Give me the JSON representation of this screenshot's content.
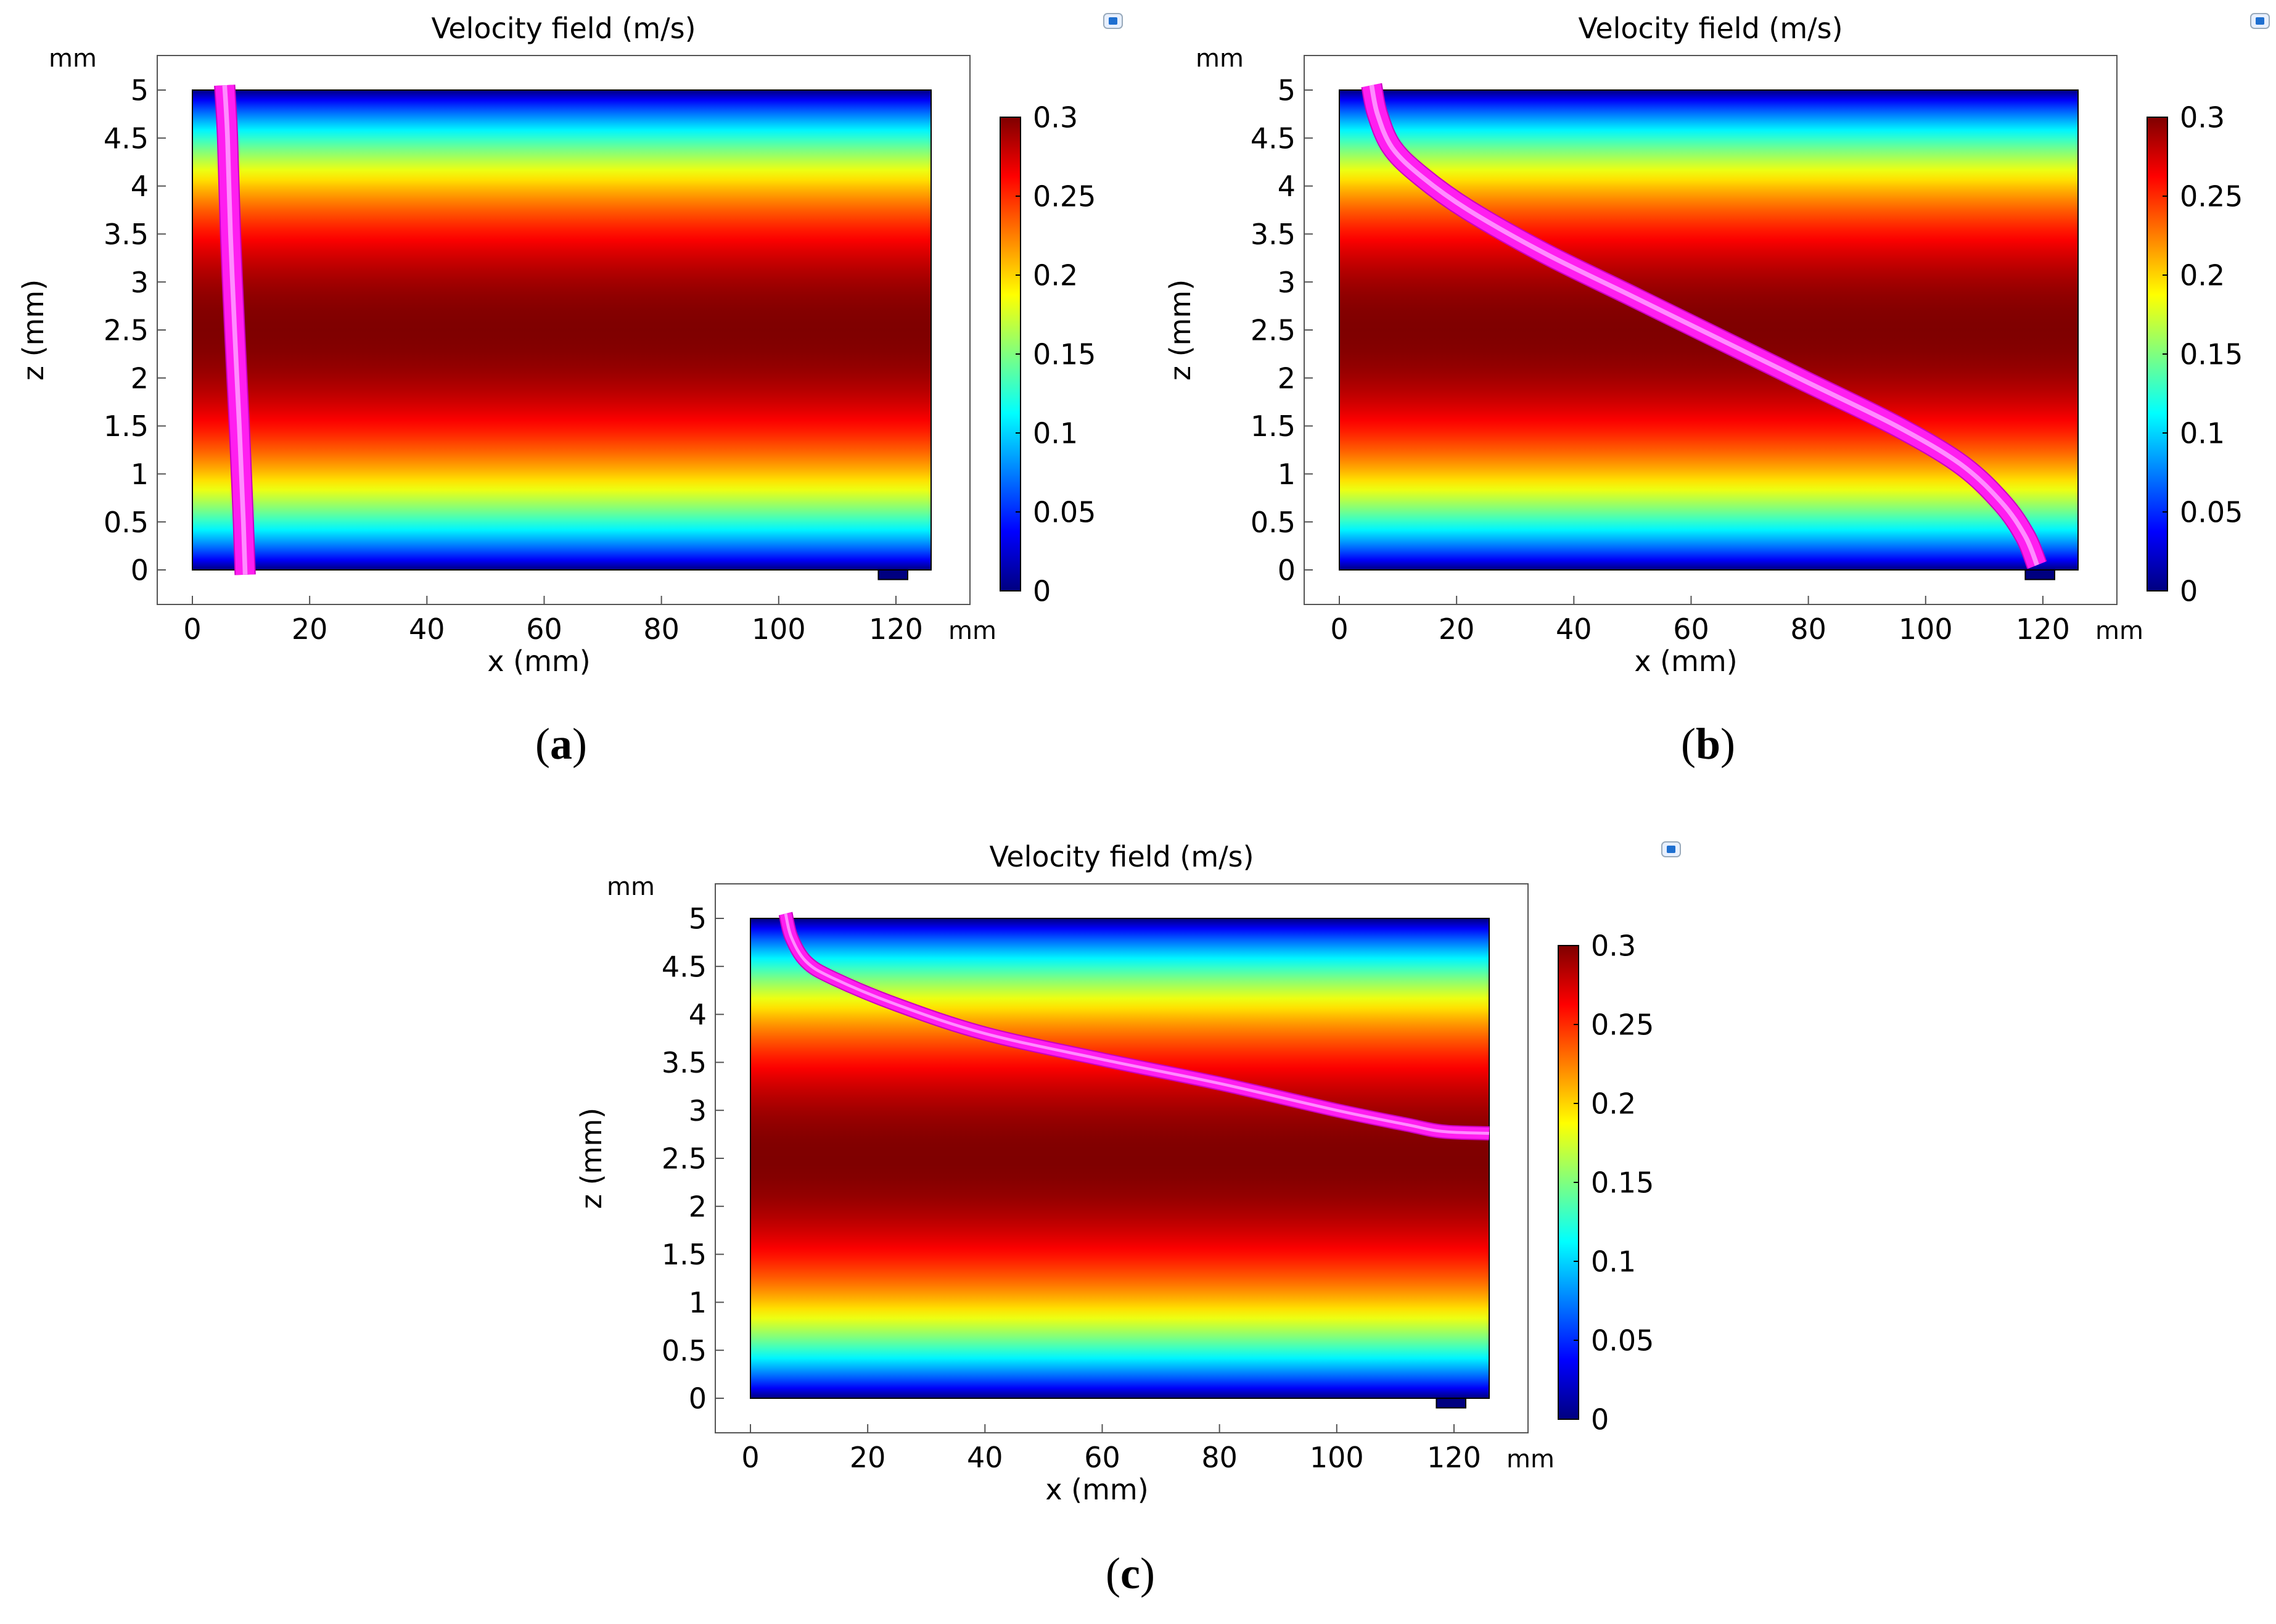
{
  "figure": {
    "captions": [
      "(a)",
      "(b)",
      "(c)"
    ]
  },
  "colors": {
    "streamline": "#ff1ef0",
    "colormap": [
      "#00007f",
      "#0000ff",
      "#007fff",
      "#00ffff",
      "#7fff7f",
      "#ffff00",
      "#ff7f00",
      "#ff0000",
      "#7f0000"
    ]
  },
  "chart_data": [
    {
      "panel": "a",
      "type": "heatmap",
      "title": "Velocity field (m/s)",
      "xlabel": "x (mm)",
      "ylabel": "z (mm)",
      "x_unit_label": "mm",
      "y_unit_label": "mm",
      "xlim": [
        -6,
        132
      ],
      "ylim": [
        -0.35,
        5.35
      ],
      "xticks": [
        0,
        20,
        40,
        60,
        80,
        100,
        120
      ],
      "xtick_labels": [
        "0",
        "20",
        "40",
        "60",
        "80",
        "100",
        "120"
      ],
      "yticks": [
        0,
        0.5,
        1,
        1.5,
        2,
        2.5,
        3,
        3.5,
        4,
        4.5,
        5
      ],
      "ytick_labels": [
        "0",
        "0.5",
        "1",
        "1.5",
        "2",
        "2.5",
        "3",
        "3.5",
        "4",
        "4.5",
        "5"
      ],
      "field": {
        "x_range": [
          0,
          126
        ],
        "z_range": [
          0,
          5
        ],
        "profile": "parabolic",
        "max_value": 0.3,
        "outlet_x_range": [
          117,
          122
        ],
        "outlet_depth": 0.1
      },
      "colorbar": {
        "range": [
          0,
          0.3
        ],
        "ticks": [
          0,
          0.05,
          0.1,
          0.15,
          0.2,
          0.25,
          0.3
        ],
        "tick_labels": [
          "0",
          "0.05",
          "0.1",
          "0.15",
          "0.2",
          "0.25",
          "0.3"
        ]
      },
      "streamline": {
        "width_mm": 3.2,
        "points": [
          [
            5.5,
            5.05
          ],
          [
            6,
            4.5
          ],
          [
            6.5,
            3.5
          ],
          [
            7.2,
            2.5
          ],
          [
            8,
            1.5
          ],
          [
            8.7,
            0.5
          ],
          [
            9,
            -0.05
          ]
        ]
      }
    },
    {
      "panel": "b",
      "type": "heatmap",
      "title": "Velocity field (m/s)",
      "xlabel": "x (mm)",
      "ylabel": "z (mm)",
      "x_unit_label": "mm",
      "y_unit_label": "mm",
      "xlim": [
        -6,
        132
      ],
      "ylim": [
        -0.35,
        5.35
      ],
      "xticks": [
        0,
        20,
        40,
        60,
        80,
        100,
        120
      ],
      "xtick_labels": [
        "0",
        "20",
        "40",
        "60",
        "80",
        "100",
        "120"
      ],
      "yticks": [
        0,
        0.5,
        1,
        1.5,
        2,
        2.5,
        3,
        3.5,
        4,
        4.5,
        5
      ],
      "ytick_labels": [
        "0",
        "0.5",
        "1",
        "1.5",
        "2",
        "2.5",
        "3",
        "3.5",
        "4",
        "4.5",
        "5"
      ],
      "field": {
        "x_range": [
          0,
          126
        ],
        "z_range": [
          0,
          5
        ],
        "profile": "parabolic",
        "max_value": 0.3,
        "outlet_x_range": [
          117,
          122
        ],
        "outlet_depth": 0.1
      },
      "colorbar": {
        "range": [
          0,
          0.3
        ],
        "ticks": [
          0,
          0.05,
          0.1,
          0.15,
          0.2,
          0.25,
          0.3
        ],
        "tick_labels": [
          "0",
          "0.05",
          "0.1",
          "0.15",
          "0.2",
          "0.25",
          "0.3"
        ]
      },
      "streamline": {
        "width_mm": 3.2,
        "points": [
          [
            5.5,
            5.05
          ],
          [
            6.5,
            4.75
          ],
          [
            9,
            4.4
          ],
          [
            14,
            4.1
          ],
          [
            22,
            3.75
          ],
          [
            35,
            3.3
          ],
          [
            50,
            2.85
          ],
          [
            65,
            2.4
          ],
          [
            80,
            1.95
          ],
          [
            95,
            1.5
          ],
          [
            106,
            1.1
          ],
          [
            113,
            0.7
          ],
          [
            117,
            0.35
          ],
          [
            119,
            0.05
          ]
        ]
      }
    },
    {
      "panel": "c",
      "type": "heatmap",
      "title": "Velocity field (m/s)",
      "xlabel": "x (mm)",
      "ylabel": "z (mm)",
      "x_unit_label": "mm",
      "y_unit_label": "mm",
      "xlim": [
        -6,
        132
      ],
      "ylim": [
        -0.35,
        5.35
      ],
      "xticks": [
        0,
        20,
        40,
        60,
        80,
        100,
        120
      ],
      "xtick_labels": [
        "0",
        "20",
        "40",
        "60",
        "80",
        "100",
        "120"
      ],
      "yticks": [
        0,
        0.5,
        1,
        1.5,
        2,
        2.5,
        3,
        3.5,
        4,
        4.5,
        5
      ],
      "ytick_labels": [
        "0",
        "0.5",
        "1",
        "1.5",
        "2",
        "2.5",
        "3",
        "3.5",
        "4",
        "4.5",
        "5"
      ],
      "field": {
        "x_range": [
          0,
          126
        ],
        "z_range": [
          0,
          5
        ],
        "profile": "parabolic",
        "max_value": 0.3,
        "outlet_x_range": [
          117,
          122
        ],
        "outlet_depth": 0.1
      },
      "colorbar": {
        "range": [
          0,
          0.3
        ],
        "ticks": [
          0,
          0.05,
          0.1,
          0.15,
          0.2,
          0.25,
          0.3
        ],
        "tick_labels": [
          "0",
          "0.05",
          "0.1",
          "0.15",
          "0.2",
          "0.25",
          "0.3"
        ]
      },
      "streamline": {
        "width_mm": 2.0,
        "points": [
          [
            6,
            5.05
          ],
          [
            7,
            4.8
          ],
          [
            9.5,
            4.55
          ],
          [
            14,
            4.38
          ],
          [
            25,
            4.1
          ],
          [
            40,
            3.8
          ],
          [
            60,
            3.53
          ],
          [
            80,
            3.28
          ],
          [
            100,
            3.0
          ],
          [
            112,
            2.85
          ],
          [
            118,
            2.78
          ],
          [
            126,
            2.76
          ]
        ]
      }
    }
  ]
}
